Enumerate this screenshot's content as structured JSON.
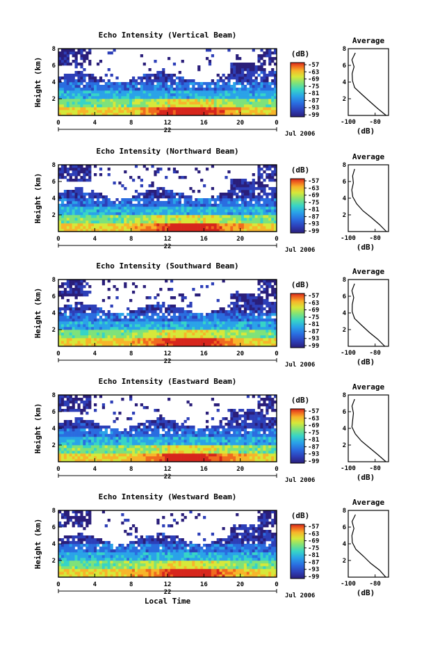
{
  "chart_data": [
    {
      "type": "heatmap",
      "title": "Echo Intensity (Vertical Beam)",
      "ylabel": "Height (km)",
      "xlim": [
        0,
        24
      ],
      "ylim": [
        0,
        8
      ],
      "x_ticks": [
        "0",
        "4",
        "8",
        "12",
        "16",
        "20",
        "0"
      ],
      "y_ticks": [
        "2",
        "4",
        "6",
        "8"
      ],
      "date_label": "22",
      "date_suffix": "Jul 2006",
      "colorbar": {
        "label": "(dB)",
        "ticks": [
          "-57",
          "-63",
          "-69",
          "-75",
          "-81",
          "-87",
          "-93",
          "-99"
        ]
      },
      "average_profile": {
        "title": "Average",
        "xlabel": "(dB)",
        "x_ticks": [
          "-100",
          "-80"
        ],
        "y_ticks": [
          "2",
          "4",
          "6",
          "8"
        ],
        "xlim": [
          -100,
          -70
        ],
        "ylim": [
          0,
          8
        ],
        "dB": [
          -72,
          -78,
          -84,
          -90,
          -95,
          -97,
          -97,
          -96,
          -97,
          -95
        ]
      }
    },
    {
      "type": "heatmap",
      "title": "Echo Intensity (Northward Beam)",
      "ylabel": "Height (km)",
      "xlim": [
        0,
        24
      ],
      "ylim": [
        0,
        8
      ],
      "x_ticks": [
        "0",
        "4",
        "8",
        "12",
        "16",
        "20",
        "0"
      ],
      "y_ticks": [
        "2",
        "4",
        "6",
        "8"
      ],
      "date_label": "22",
      "date_suffix": "Jul 2006",
      "colorbar": {
        "label": "(dB)",
        "ticks": [
          "-57",
          "-63",
          "-69",
          "-75",
          "-81",
          "-87",
          "-93",
          "-99"
        ]
      },
      "average_profile": {
        "title": "Average",
        "xlabel": "(dB)",
        "x_ticks": [
          "-100",
          "-80"
        ],
        "y_ticks": [
          "2",
          "4",
          "6",
          "8"
        ],
        "xlim": [
          -100,
          -70
        ],
        "ylim": [
          0,
          8
        ],
        "dB": [
          -72,
          -77,
          -83,
          -89,
          -94,
          -97,
          -97,
          -96,
          -97,
          -95
        ]
      }
    },
    {
      "type": "heatmap",
      "title": "Echo Intensity (Southward Beam)",
      "ylabel": "Height (km)",
      "xlim": [
        0,
        24
      ],
      "ylim": [
        0,
        8
      ],
      "x_ticks": [
        "0",
        "4",
        "8",
        "12",
        "16",
        "20",
        "0"
      ],
      "y_ticks": [
        "2",
        "4",
        "6",
        "8"
      ],
      "date_label": "22",
      "date_suffix": "Jul 2006",
      "colorbar": {
        "label": "(dB)",
        "ticks": [
          "-57",
          "-63",
          "-69",
          "-75",
          "-81",
          "-87",
          "-93",
          "-99"
        ]
      },
      "average_profile": {
        "title": "Average",
        "xlabel": "(dB)",
        "x_ticks": [
          "-100",
          "-80"
        ],
        "y_ticks": [
          "2",
          "4",
          "6",
          "8"
        ],
        "xlim": [
          -100,
          -70
        ],
        "ylim": [
          0,
          8
        ],
        "dB": [
          -73,
          -78,
          -84,
          -90,
          -95,
          -97,
          -97,
          -96,
          -97,
          -95
        ]
      }
    },
    {
      "type": "heatmap",
      "title": "Echo Intensity (Eastward Beam)",
      "ylabel": "Height (km)",
      "xlim": [
        0,
        24
      ],
      "ylim": [
        0,
        8
      ],
      "x_ticks": [
        "0",
        "4",
        "8",
        "12",
        "16",
        "20",
        "0"
      ],
      "y_ticks": [
        "2",
        "4",
        "6",
        "8"
      ],
      "date_label": "22",
      "date_suffix": "Jul 2006",
      "colorbar": {
        "label": "(dB)",
        "ticks": [
          "-57",
          "-63",
          "-69",
          "-75",
          "-81",
          "-87",
          "-93",
          "-99"
        ]
      },
      "average_profile": {
        "title": "Average",
        "xlabel": "(dB)",
        "x_ticks": [
          "-100",
          "-80"
        ],
        "y_ticks": [
          "2",
          "4",
          "6",
          "8"
        ],
        "xlim": [
          -100,
          -70
        ],
        "ylim": [
          0,
          8
        ],
        "dB": [
          -72,
          -78,
          -84,
          -90,
          -95,
          -97,
          -97,
          -96,
          -97,
          -95
        ]
      }
    },
    {
      "type": "heatmap",
      "title": "Echo Intensity (Westward Beam)",
      "ylabel": "Height (km)",
      "xlabel": "Local Time",
      "xlim": [
        0,
        24
      ],
      "ylim": [
        0,
        8
      ],
      "x_ticks": [
        "0",
        "4",
        "8",
        "12",
        "16",
        "20",
        "0"
      ],
      "y_ticks": [
        "2",
        "4",
        "6",
        "8"
      ],
      "date_label": "22",
      "date_suffix": "Jul 2006",
      "colorbar": {
        "label": "(dB)",
        "ticks": [
          "-57",
          "-63",
          "-69",
          "-75",
          "-81",
          "-87",
          "-93",
          "-99"
        ]
      },
      "average_profile": {
        "title": "Average",
        "xlabel": "(dB)",
        "x_ticks": [
          "-100",
          "-80"
        ],
        "y_ticks": [
          "2",
          "4",
          "6",
          "8"
        ],
        "xlim": [
          -100,
          -70
        ],
        "ylim": [
          0,
          8
        ],
        "dB": [
          -72,
          -77,
          -83,
          -89,
          -94,
          -97,
          -97,
          -96,
          -97,
          -95
        ]
      }
    }
  ],
  "colors": {
    "colormap": [
      "#2a1e7a",
      "#2d3fb8",
      "#2a6de0",
      "#2aa3e8",
      "#37d4c7",
      "#7ee27a",
      "#d6e83a",
      "#f7b52a",
      "#f06a1f",
      "#d7261c"
    ]
  }
}
